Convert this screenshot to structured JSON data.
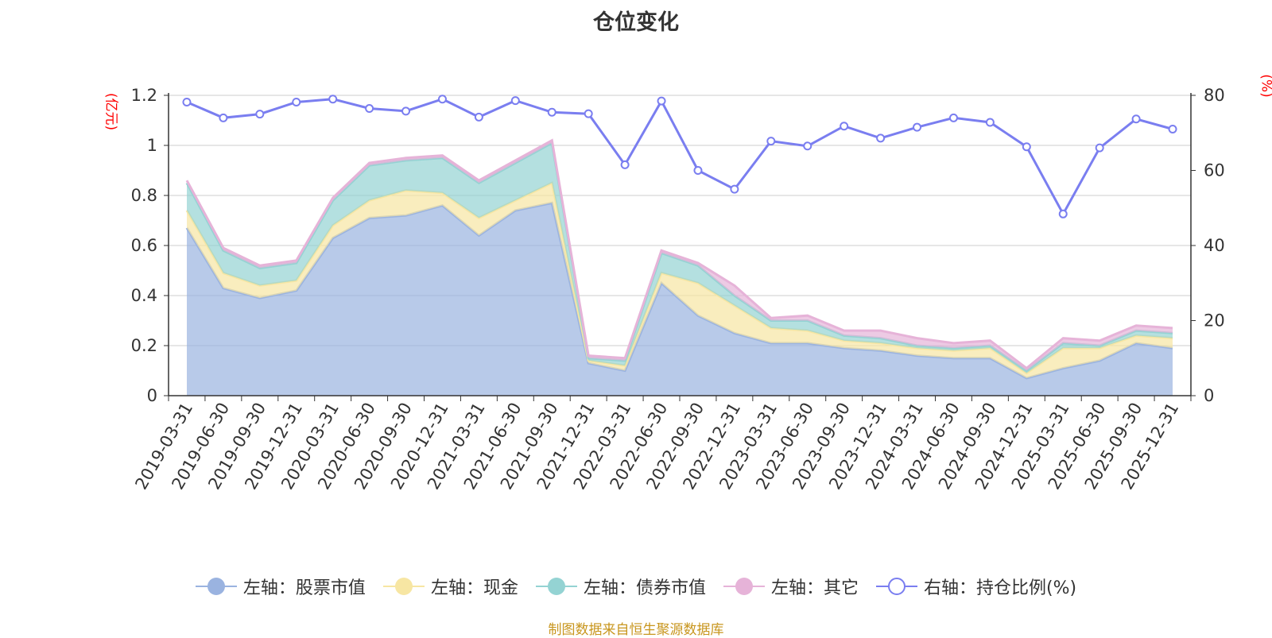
{
  "title": "仓位变化",
  "left_unit": "(亿元)",
  "right_unit": "(%)",
  "footer": "制图数据来自恒生聚源数据库",
  "colors": {
    "stock": "#9ab3e0",
    "cash": "#f7e6a3",
    "bond": "#94d3d3",
    "other": "#e6b3d8",
    "ratio": "#7a7ef0"
  },
  "legend": [
    {
      "label": "左轴：股票市值",
      "color": "#9ab3e0",
      "hollow": false
    },
    {
      "label": "左轴：现金",
      "color": "#f7e6a3",
      "hollow": false
    },
    {
      "label": "左轴：债券市值",
      "color": "#94d3d3",
      "hollow": false
    },
    {
      "label": "左轴：其它",
      "color": "#e6b3d8",
      "hollow": false
    },
    {
      "label": "右轴：持仓比例(%)",
      "color": "#7a7ef0",
      "hollow": true
    }
  ],
  "chart_data": {
    "type": "area",
    "title": "仓位变化",
    "categories": [
      "2019-03-31",
      "2019-06-30",
      "2019-09-30",
      "2019-12-31",
      "2020-03-31",
      "2020-06-30",
      "2020-09-30",
      "2020-12-31",
      "2021-03-31",
      "2021-06-30",
      "2021-09-30",
      "2021-12-31",
      "2022-03-31",
      "2022-06-30",
      "2022-09-30",
      "2022-12-31",
      "2023-03-31",
      "2023-06-30",
      "2023-09-30",
      "2023-12-31",
      "2024-03-31",
      "2024-06-30",
      "2024-09-30",
      "2024-12-31",
      "2025-03-31",
      "2025-06-30",
      "2025-09-30",
      "2025-12-31"
    ],
    "left_axis": {
      "label": "(亿元)",
      "ylim": [
        0,
        1.2
      ],
      "ticks": [
        "0",
        "0.2",
        "0.4",
        "0.6",
        "0.8",
        "1",
        "1.2"
      ]
    },
    "right_axis": {
      "label": "(%)",
      "ylim": [
        0,
        80
      ],
      "ticks": [
        "0",
        "20",
        "40",
        "60",
        "80"
      ]
    },
    "stacked": true,
    "series": [
      {
        "name": "左轴：股票市值",
        "axis": "left",
        "values": [
          0.67,
          0.43,
          0.39,
          0.42,
          0.63,
          0.71,
          0.72,
          0.76,
          0.64,
          0.74,
          0.77,
          0.13,
          0.1,
          0.45,
          0.32,
          0.25,
          0.21,
          0.21,
          0.19,
          0.18,
          0.16,
          0.15,
          0.15,
          0.07,
          0.11,
          0.14,
          0.21,
          0.19
        ]
      },
      {
        "name": "左轴：现金",
        "axis": "left",
        "values": [
          0.07,
          0.06,
          0.05,
          0.04,
          0.05,
          0.07,
          0.1,
          0.05,
          0.07,
          0.04,
          0.08,
          0.01,
          0.02,
          0.04,
          0.13,
          0.11,
          0.06,
          0.05,
          0.03,
          0.03,
          0.03,
          0.03,
          0.04,
          0.02,
          0.08,
          0.05,
          0.03,
          0.04
        ]
      },
      {
        "name": "左轴：债券市值",
        "axis": "left",
        "values": [
          0.11,
          0.09,
          0.07,
          0.07,
          0.1,
          0.14,
          0.12,
          0.14,
          0.14,
          0.15,
          0.16,
          0.01,
          0.02,
          0.08,
          0.07,
          0.04,
          0.03,
          0.04,
          0.02,
          0.02,
          0.01,
          0.01,
          0.01,
          0.01,
          0.02,
          0.01,
          0.02,
          0.02
        ]
      },
      {
        "name": "左轴：其它",
        "axis": "left",
        "values": [
          0.01,
          0.01,
          0.01,
          0.01,
          0.01,
          0.01,
          0.01,
          0.01,
          0.01,
          0.01,
          0.01,
          0.01,
          0.01,
          0.01,
          0.01,
          0.04,
          0.01,
          0.02,
          0.02,
          0.03,
          0.03,
          0.02,
          0.02,
          0.01,
          0.02,
          0.02,
          0.02,
          0.02
        ]
      },
      {
        "name": "右轴：持仓比例(%)",
        "axis": "right",
        "type": "line",
        "values": [
          78.2,
          74.0,
          75.0,
          78.2,
          79.0,
          76.5,
          75.8,
          79.0,
          74.2,
          78.6,
          75.5,
          75.1,
          61.5,
          78.5,
          60.0,
          55.0,
          67.8,
          66.5,
          71.8,
          68.6,
          71.5,
          74.0,
          72.8,
          66.3,
          48.4,
          66.0,
          73.7,
          71.0
        ]
      }
    ]
  }
}
